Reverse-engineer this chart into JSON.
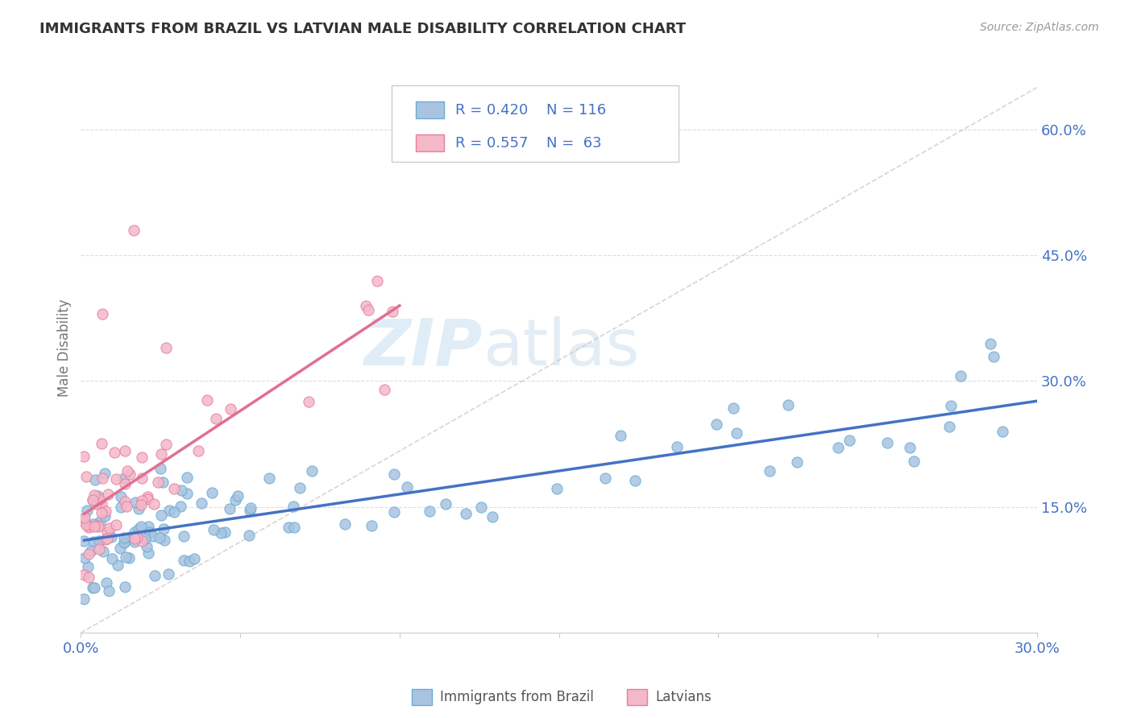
{
  "title": "IMMIGRANTS FROM BRAZIL VS LATVIAN MALE DISABILITY CORRELATION CHART",
  "source_text": "Source: ZipAtlas.com",
  "ylabel": "Male Disability",
  "xlim": [
    0.0,
    0.3
  ],
  "ylim": [
    0.0,
    0.68
  ],
  "xticks": [
    0.0,
    0.05,
    0.1,
    0.15,
    0.2,
    0.25,
    0.3
  ],
  "xticklabels": [
    "0.0%",
    "",
    "",
    "",
    "",
    "",
    "30.0%"
  ],
  "yticks_right": [
    0.15,
    0.3,
    0.45,
    0.6
  ],
  "ytick_right_labels": [
    "15.0%",
    "30.0%",
    "45.0%",
    "60.0%"
  ],
  "brazil_color": "#a8c4e0",
  "brazil_edge": "#6aadd5",
  "latvian_color": "#f4b8c8",
  "latvian_edge": "#e87fa0",
  "trend_brazil_color": "#4472c4",
  "trend_latvian_color": "#e07090",
  "ref_line_color": "#cccccc",
  "legend_R_brazil": "R = 0.420",
  "legend_N_brazil": "N = 116",
  "legend_R_latvian": "R = 0.557",
  "legend_N_latvian": "N =  63",
  "bg_color": "#ffffff",
  "grid_color": "#dddddd",
  "axis_color": "#cccccc",
  "title_color": "#333333",
  "label_color": "#4472c4",
  "tick_color": "#4472c4",
  "watermark_zip": "ZIP",
  "watermark_atlas": "atlas"
}
